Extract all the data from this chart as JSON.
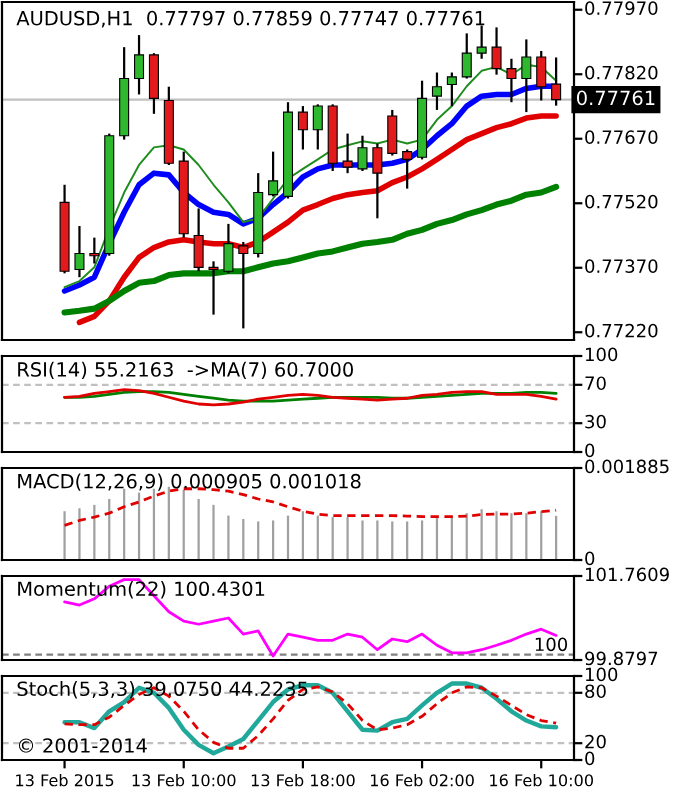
{
  "chart_data": [
    {
      "type": "candlestick",
      "title": "AUDUSD,H1  0.77797 0.77859 0.77747 0.77761",
      "categories": [
        null,
        null,
        null,
        null,
        null,
        null,
        null,
        null,
        null,
        null,
        null,
        null,
        null,
        null,
        null,
        null,
        null,
        null,
        null,
        null,
        null,
        null,
        null,
        null,
        null,
        null,
        null,
        null,
        null,
        null,
        null,
        null,
        null,
        null
      ],
      "ohlc": [
        [
          0.77522,
          0.77563,
          0.77357,
          0.77362
        ],
        [
          0.77366,
          0.77467,
          0.77348,
          0.77403
        ],
        [
          0.77403,
          0.7744,
          0.7738,
          0.77398
        ],
        [
          0.77403,
          0.77682,
          0.77398,
          0.77677
        ],
        [
          0.77677,
          0.77883,
          0.77668,
          0.7781
        ],
        [
          0.7781,
          0.77911,
          0.77773,
          0.77865
        ],
        [
          0.77865,
          0.77869,
          0.77728,
          0.77764
        ],
        [
          0.77759,
          0.77791,
          0.77609,
          0.77613
        ],
        [
          0.77618,
          0.7764,
          0.7744,
          0.77449
        ],
        [
          0.77445,
          0.77508,
          0.77362,
          0.77371
        ],
        [
          0.77371,
          0.77385,
          0.77261,
          0.77366
        ],
        [
          0.77362,
          0.77472,
          0.77357,
          0.77426
        ],
        [
          0.77421,
          0.7743,
          0.77229,
          0.77403
        ],
        [
          0.77403,
          0.7759,
          0.77394,
          0.77545
        ],
        [
          0.7754,
          0.7764,
          0.77536,
          0.77572
        ],
        [
          0.77536,
          0.77755,
          0.77531,
          0.77732
        ],
        [
          0.77732,
          0.77746,
          0.77645,
          0.77691
        ],
        [
          0.77691,
          0.7775,
          0.77645,
          0.77746
        ],
        [
          0.77746,
          0.7775,
          0.77595,
          0.77613
        ],
        [
          0.77618,
          0.77682,
          0.7759,
          0.77604
        ],
        [
          0.776,
          0.77677,
          0.77595,
          0.77649
        ],
        [
          0.77649,
          0.77659,
          0.77485,
          0.7759
        ],
        [
          0.77723,
          0.77737,
          0.77631,
          0.77636
        ],
        [
          0.7764,
          0.77645,
          0.77554,
          0.77622
        ],
        [
          0.77627,
          0.77805,
          0.77622,
          0.77764
        ],
        [
          0.77769,
          0.77824,
          0.77737,
          0.77791
        ],
        [
          0.77796,
          0.77824,
          0.77746,
          0.77814
        ],
        [
          0.77814,
          0.77915,
          0.7781,
          0.77869
        ],
        [
          0.77869,
          0.77933,
          0.77856,
          0.77883
        ],
        [
          0.77883,
          0.77929,
          0.77819,
          0.77833
        ],
        [
          0.77833,
          0.77856,
          0.77755,
          0.7781
        ],
        [
          0.7781,
          0.77901,
          0.77732,
          0.7786
        ],
        [
          0.7786,
          0.77874,
          0.77759,
          0.77791
        ],
        [
          0.77797,
          0.77859,
          0.77747,
          0.77761
        ]
      ],
      "colors": [
        "#e31a1c",
        "#2eb82e",
        "#e31a1c",
        "#2eb82e",
        "#2eb82e",
        "#2eb82e",
        "#e31a1c",
        "#e31a1c",
        "#e31a1c",
        "#e31a1c",
        "#e31a1c",
        "#2eb82e",
        "#e31a1c",
        "#2eb82e",
        "#2eb82e",
        "#2eb82e",
        "#e31a1c",
        "#2eb82e",
        "#e31a1c",
        "#e31a1c",
        "#2eb82e",
        "#e31a1c",
        "#e31a1c",
        "#e31a1c",
        "#2eb82e",
        "#2eb82e",
        "#2eb82e",
        "#2eb82e",
        "#2eb82e",
        "#e31a1c",
        "#e31a1c",
        "#2eb82e",
        "#e31a1c",
        "#e31a1c"
      ],
      "series": [
        {
          "type": "line",
          "color": "#0000ff",
          "values": [
            0.77316,
            0.7733,
            0.77348,
            0.77426,
            0.77499,
            0.77563,
            0.7759,
            0.77586,
            0.77545,
            0.77517,
            0.77499,
            0.77494,
            0.77472,
            0.77485,
            0.77517,
            0.77545,
            0.77581,
            0.776,
            0.77609,
            0.77609,
            0.77609,
            0.77609,
            0.77613,
            0.77622,
            0.77645,
            0.77677,
            0.77705,
            0.77746,
            0.77769,
            0.77773,
            0.77773,
            0.77787,
            0.77792,
            0.77792
          ]
        },
        {
          "type": "line",
          "color": "#e00000",
          "values": [
            null,
            0.77243,
            0.77257,
            0.77293,
            0.77348,
            0.77394,
            0.77417,
            0.7743,
            0.77435,
            0.7743,
            0.77426,
            0.77426,
            0.77417,
            0.7743,
            0.77453,
            0.77476,
            0.77504,
            0.77517,
            0.77531,
            0.7754,
            0.77545,
            0.77549,
            0.77568,
            0.77581,
            0.776,
            0.77622,
            0.77645,
            0.77668,
            0.77682,
            0.77696,
            0.77705,
            0.77718,
            0.77723,
            0.77723
          ]
        },
        {
          "type": "line",
          "color": "#008000",
          "values": [
            0.77266,
            0.7727,
            0.77275,
            0.77293,
            0.77316,
            0.77335,
            0.77339,
            0.77353,
            0.77357,
            0.77357,
            0.77357,
            0.77362,
            0.77362,
            0.77371,
            0.7738,
            0.77385,
            0.77394,
            0.77403,
            0.77408,
            0.77417,
            0.77426,
            0.7743,
            0.77435,
            0.77449,
            0.77458,
            0.77472,
            0.77481,
            0.77494,
            0.77504,
            0.77517,
            0.77526,
            0.7754,
            0.77545,
            0.77558
          ]
        },
        {
          "type": "line",
          "color": "#1e8c1e",
          "values": [
            0.77325,
            0.77339,
            0.77371,
            0.77462,
            0.77545,
            0.77609,
            0.7765,
            0.77655,
            0.77645,
            0.77609,
            0.77563,
            0.77522,
            0.77476,
            0.77485,
            0.77531,
            0.77577,
            0.776,
            0.77622,
            0.77645,
            0.77655,
            0.77664,
            0.77659,
            0.77668,
            0.77659,
            0.77668,
            0.77714,
            0.77746,
            0.77792,
            0.77828,
            0.77837,
            0.77819,
            0.77842,
            0.77837,
            0.77805
          ]
        }
      ],
      "ylim": [
        0.77202,
        0.77988
      ],
      "yticks": [
        {
          "value": 0.7722,
          "label": "0.77220"
        },
        {
          "value": 0.7737,
          "label": "0.77370"
        },
        {
          "value": 0.7752,
          "label": "0.77520"
        },
        {
          "value": 0.7767,
          "label": "0.77670"
        },
        {
          "value": 0.7782,
          "label": "0.77820"
        },
        {
          "value": 0.7797,
          "label": "0.77970"
        }
      ],
      "ref_lines": [
        {
          "axis": "y",
          "value": 0.77761,
          "label": "0.77761",
          "color": "#c0c0c0"
        }
      ],
      "tick_labels": "y"
    },
    {
      "type": "line",
      "title": "RSI(14) 55.2163  ->MA(7) 60.7000",
      "categories": [
        null,
        null,
        null,
        null,
        null,
        null,
        null,
        null,
        null,
        null,
        null,
        null,
        null,
        null,
        null,
        null,
        null,
        null,
        null,
        null,
        null,
        null,
        null,
        null,
        null,
        null,
        null,
        null,
        null,
        null,
        null,
        null,
        null,
        null
      ],
      "series": [
        {
          "color": "#008000",
          "values": [
            57,
            57,
            58,
            60,
            62,
            63,
            63,
            62,
            60,
            58,
            56,
            54,
            53,
            53,
            53,
            54,
            55,
            56,
            57,
            57,
            57,
            57,
            56,
            56,
            57,
            58,
            59,
            60,
            61,
            61,
            61,
            62,
            62,
            61
          ]
        },
        {
          "color": "#e00000",
          "values": [
            57,
            58,
            61,
            63,
            65,
            64,
            61,
            57,
            53,
            50,
            49,
            50,
            52,
            55,
            57,
            59,
            60,
            59,
            57,
            56,
            55,
            54,
            55,
            56,
            59,
            60,
            62,
            63,
            63,
            60,
            60,
            60,
            58,
            55
          ]
        }
      ],
      "ylim": [
        0,
        100
      ],
      "yticks": [
        0,
        30,
        70,
        100
      ],
      "ref_lines": [
        {
          "axis": "y",
          "value": 70,
          "color": "#c0c0c0",
          "line_style": "dashed"
        },
        {
          "axis": "y",
          "value": 30,
          "color": "#c0c0c0",
          "line_style": "dashed"
        }
      ],
      "tick_labels": "y"
    },
    {
      "type": "bar",
      "title": "MACD(12,26,9) 0.000905 0.001018",
      "categories": [
        null,
        null,
        null,
        null,
        null,
        null,
        null,
        null,
        null,
        null,
        null,
        null,
        null,
        null,
        null,
        null,
        null,
        null,
        null,
        null,
        null,
        null,
        null,
        null,
        null,
        null,
        null,
        null,
        null,
        null,
        null,
        null,
        null,
        null
      ],
      "series": [
        {
          "type": "bar",
          "color": "#a0a0a0",
          "values": [
            0.001,
            0.00106,
            0.00113,
            0.00125,
            0.00146,
            0.00138,
            0.00146,
            0.0015,
            0.00144,
            0.00125,
            0.00113,
            0.00091,
            0.00084,
            0.00079,
            0.00081,
            0.00091,
            0.001,
            0.00091,
            0.00088,
            0.00088,
            0.00081,
            0.00081,
            0.00079,
            0.00079,
            0.00081,
            0.00088,
            0.00091,
            0.00096,
            0.00104,
            0.001,
            0.00096,
            0.00096,
            0.001,
            0.000905
          ]
        },
        {
          "type": "line",
          "color": "#e00000",
          "line_style": "dashed",
          "values": [
            0.00071,
            0.00081,
            0.00088,
            0.00096,
            0.00109,
            0.00119,
            0.00131,
            0.00141,
            0.00146,
            0.00146,
            0.00144,
            0.00141,
            0.00134,
            0.00125,
            0.00119,
            0.00109,
            0.001,
            0.00094,
            0.00091,
            0.00091,
            0.00091,
            0.00091,
            0.00091,
            0.0009,
            0.00089,
            0.00089,
            0.00089,
            0.0009,
            0.00093,
            0.00094,
            0.00094,
            0.00096,
            0.00099,
            0.001018
          ]
        }
      ],
      "ylim": [
        0,
        0.001885
      ],
      "yticks": [
        0,
        0.001885
      ],
      "tick_labels": "y"
    },
    {
      "type": "line",
      "title": "Momentum(22) 100.4301",
      "categories": [
        null,
        null,
        null,
        null,
        null,
        null,
        null,
        null,
        null,
        null,
        null,
        null,
        null,
        null,
        null,
        null,
        null,
        null,
        null,
        null,
        null,
        null,
        null,
        null,
        null,
        null,
        null,
        null,
        null,
        null,
        null,
        null,
        null,
        null
      ],
      "series": [
        {
          "color": "#ff00ff",
          "values": [
            101.18,
            101.11,
            101.25,
            101.53,
            101.68,
            101.68,
            101.32,
            100.96,
            100.75,
            100.68,
            100.75,
            100.82,
            100.46,
            100.53,
            99.97,
            100.46,
            100.39,
            100.32,
            100.32,
            100.46,
            100.39,
            100.11,
            100.35,
            100.29,
            100.46,
            100.21,
            100.04,
            100.04,
            100.11,
            100.21,
            100.32,
            100.46,
            100.57,
            100.43
          ]
        }
      ],
      "ylim": [
        99.8797,
        101.7609
      ],
      "yticks": [
        99.8797,
        101.7609
      ],
      "ref_lines": [
        {
          "axis": "y",
          "value": 100,
          "label": "100",
          "color": "#808080",
          "line_style": "dashed"
        }
      ],
      "tick_labels": "y"
    },
    {
      "type": "line",
      "title": "Stoch(5,3,3) 39.0750 44.2235",
      "categories": [
        "13 Feb 2015",
        null,
        null,
        null,
        null,
        null,
        null,
        null,
        "13 Feb 10:00",
        null,
        null,
        null,
        null,
        null,
        null,
        null,
        "13 Feb 18:00",
        null,
        null,
        null,
        null,
        null,
        null,
        null,
        "16 Feb 02:00",
        null,
        null,
        null,
        null,
        null,
        null,
        null,
        "16 Feb 10:00",
        null
      ],
      "series": [
        {
          "color": "#20a89a",
          "values": [
            45,
            45,
            38,
            58,
            69,
            86,
            80,
            62,
            36,
            18,
            8,
            16,
            25,
            47,
            69,
            84,
            89,
            89,
            80,
            58,
            36,
            35,
            45,
            49,
            65,
            80,
            91,
            91,
            86,
            73,
            58,
            47,
            40,
            39
          ]
        },
        {
          "color": "#e00000",
          "line_style": "dashed",
          "values": [
            43,
            42,
            42,
            51,
            65,
            78,
            86,
            76,
            58,
            36,
            21,
            14,
            14,
            29,
            49,
            71,
            84,
            87,
            81,
            67,
            47,
            36,
            38,
            42,
            52,
            67,
            80,
            87,
            86,
            76,
            65,
            54,
            47,
            44
          ]
        }
      ],
      "ylim": [
        0,
        100
      ],
      "yticks": [
        0,
        20,
        80,
        100
      ],
      "ref_lines": [
        {
          "axis": "y",
          "value": 80,
          "color": "#c0c0c0",
          "line_style": "dashed"
        },
        {
          "axis": "y",
          "value": 20,
          "color": "#c0c0c0",
          "line_style": "dashed"
        }
      ],
      "annotations": [
        "© 2001-2014"
      ]
    }
  ]
}
